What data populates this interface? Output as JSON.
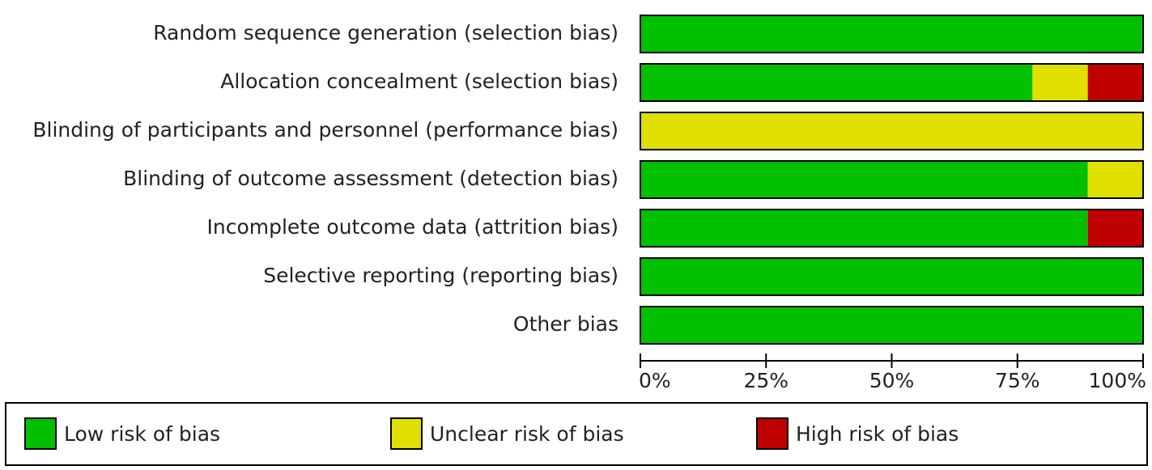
{
  "chart_data": {
    "type": "stacked-barh",
    "categories": [
      "Random sequence generation (selection bias)",
      "Allocation concealment (selection bias)",
      "Blinding of participants and personnel (performance bias)",
      "Blinding of outcome assessment (detection bias)",
      "Incomplete outcome data (attrition bias)",
      "Selective reporting (reporting bias)",
      "Other bias"
    ],
    "series": [
      {
        "name": "Low risk of bias",
        "color": "#00c000",
        "values": [
          100,
          78,
          0,
          89,
          89,
          100,
          100
        ]
      },
      {
        "name": "Unclear risk of bias",
        "color": "#e0e000",
        "values": [
          0,
          11,
          100,
          11,
          0,
          0,
          0
        ]
      },
      {
        "name": "High risk of bias",
        "color": "#c00000",
        "values": [
          0,
          11,
          0,
          0,
          11,
          0,
          0
        ]
      }
    ],
    "xlim": [
      0,
      100
    ],
    "xticks": [
      {
        "value": 0,
        "label": "0%"
      },
      {
        "value": 25,
        "label": "25%"
      },
      {
        "value": 50,
        "label": "50%"
      },
      {
        "value": 75,
        "label": "75%"
      },
      {
        "value": 100,
        "label": "100%"
      }
    ],
    "legend": "bottom"
  }
}
